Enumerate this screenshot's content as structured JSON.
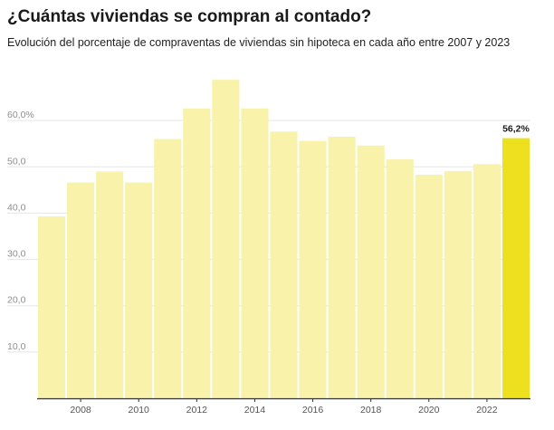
{
  "header": {
    "title": "¿Cuántas viviendas se compran al contado?",
    "subtitle": "Evolución del porcentaje de compraventas de viviendas sin hipoteca en cada año entre 2007 y 2023"
  },
  "colors": {
    "bar": "#f8f2aa",
    "highlight": "#ede01f",
    "grid": "#e5e5e5",
    "axis": "#333333"
  },
  "chart_data": {
    "type": "bar",
    "title": "¿Cuántas viviendas se compran al contado?",
    "subtitle": "Evolución del porcentaje de compraventas de viviendas sin hipoteca en cada año entre 2007 y 2023",
    "xlabel": "",
    "ylabel": "",
    "categories": [
      "2007",
      "2008",
      "2009",
      "2010",
      "2011",
      "2012",
      "2013",
      "2014",
      "2015",
      "2016",
      "2017",
      "2018",
      "2019",
      "2020",
      "2021",
      "2022",
      "2023"
    ],
    "values": [
      39.3,
      46.6,
      49.0,
      46.6,
      56.0,
      62.6,
      68.8,
      62.6,
      57.6,
      55.6,
      56.5,
      54.6,
      51.6,
      48.3,
      49.1,
      50.6,
      56.2
    ],
    "highlight_index": 16,
    "data_labels": [
      {
        "index": 16,
        "text": "56,2%"
      }
    ],
    "ylim": [
      0,
      70
    ],
    "yticks": [
      {
        "value": 10,
        "label": "10,0"
      },
      {
        "value": 20,
        "label": "20,0"
      },
      {
        "value": 30,
        "label": "30,0"
      },
      {
        "value": 40,
        "label": "40,0"
      },
      {
        "value": 50,
        "label": "50,0"
      },
      {
        "value": 60,
        "label": "60,0%"
      }
    ],
    "xticks": [
      {
        "index": 1,
        "label": "2008"
      },
      {
        "index": 3,
        "label": "2010"
      },
      {
        "index": 5,
        "label": "2012"
      },
      {
        "index": 7,
        "label": "2014"
      },
      {
        "index": 9,
        "label": "2016"
      },
      {
        "index": 11,
        "label": "2018"
      },
      {
        "index": 13,
        "label": "2020"
      },
      {
        "index": 15,
        "label": "2022"
      }
    ],
    "grid": true,
    "legend": "none"
  }
}
